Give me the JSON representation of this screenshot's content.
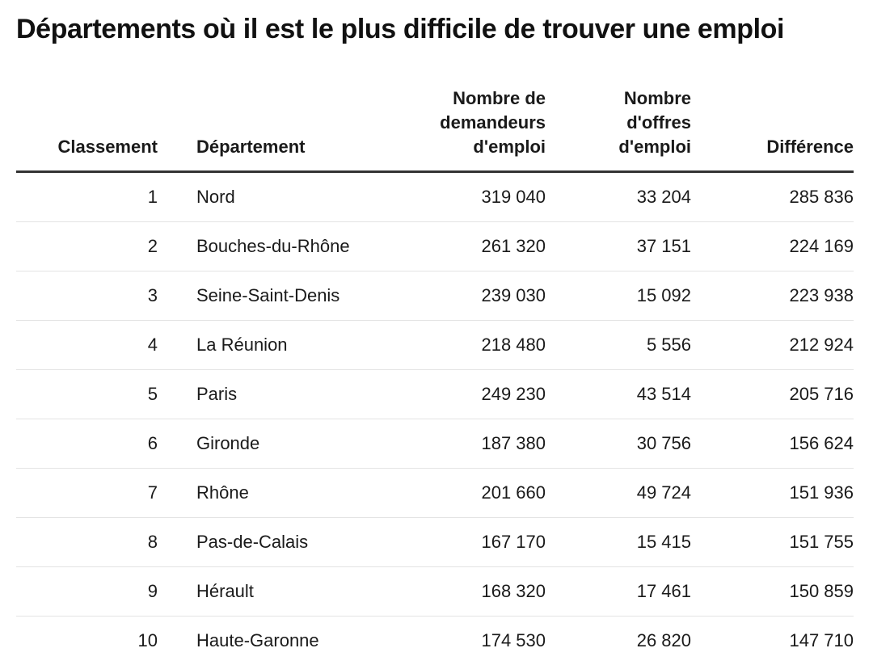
{
  "chart_data": {
    "type": "table",
    "title": "Départements où il est le plus difficile de trouver une emploi",
    "columns": [
      "Classement",
      "Département",
      "Nombre de\ndemandeurs\nd'emploi",
      "Nombre\nd'offres\nd'emploi",
      "Différence"
    ],
    "rows": [
      [
        "1",
        "Nord",
        "319 040",
        "33 204",
        "285 836"
      ],
      [
        "2",
        "Bouches-du-Rhône",
        "261 320",
        "37 151",
        "224 169"
      ],
      [
        "3",
        "Seine-Saint-Denis",
        "239 030",
        "15 092",
        "223 938"
      ],
      [
        "4",
        "La Réunion",
        "218 480",
        "5 556",
        "212 924"
      ],
      [
        "5",
        "Paris",
        "249 230",
        "43 514",
        "205 716"
      ],
      [
        "6",
        "Gironde",
        "187 380",
        "30 756",
        "156 624"
      ],
      [
        "7",
        "Rhône",
        "201 660",
        "49 724",
        "151 936"
      ],
      [
        "8",
        "Pas-de-Calais",
        "167 170",
        "15 415",
        "151 755"
      ],
      [
        "9",
        "Hérault",
        "168 320",
        "17 461",
        "150 859"
      ],
      [
        "10",
        "Haute-Garonne",
        "174 530",
        "26 820",
        "147 710"
      ]
    ]
  }
}
